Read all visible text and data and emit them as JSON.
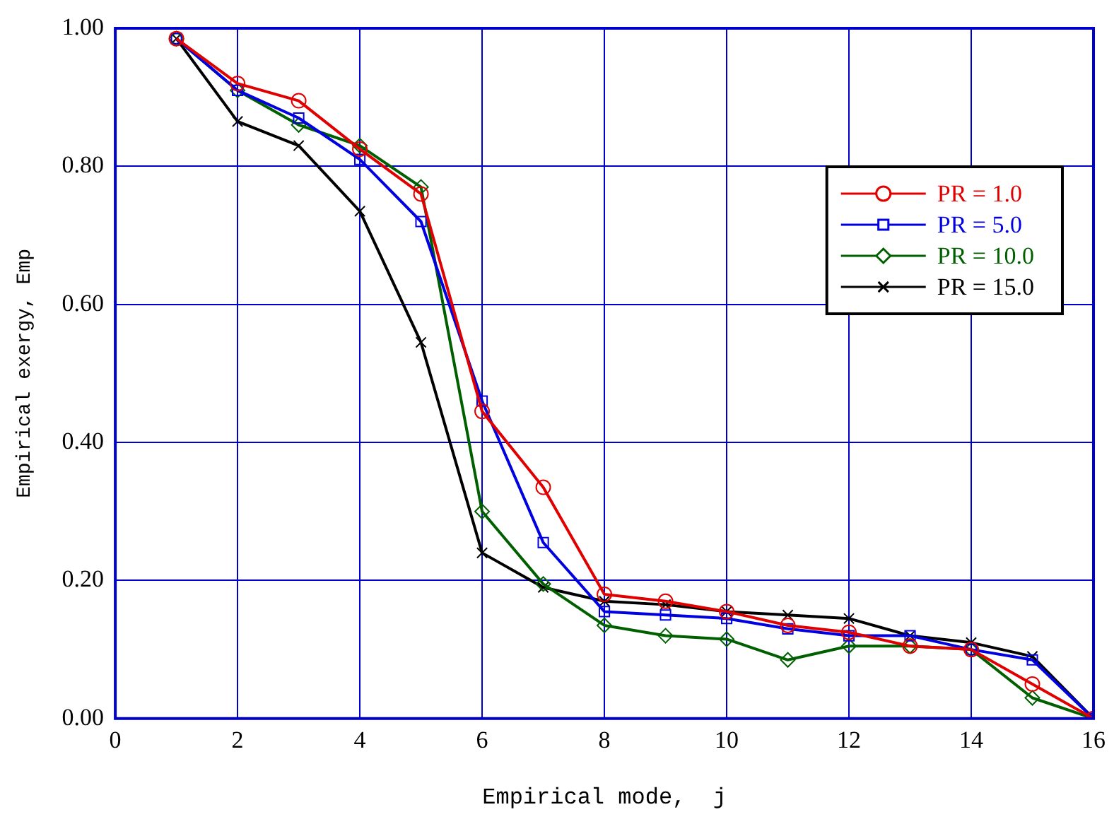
{
  "chart_data": {
    "type": "line",
    "xlabel": "Empirical mode,  j",
    "ylabel": "Empirical exergy, Emp",
    "x": [
      1,
      2,
      3,
      4,
      5,
      6,
      7,
      8,
      9,
      10,
      11,
      12,
      13,
      14,
      15,
      16
    ],
    "series": [
      {
        "name": "PR = 1.0",
        "color": "#e00000",
        "marker": "circle",
        "values": [
          0.985,
          0.92,
          0.895,
          0.825,
          0.76,
          0.445,
          0.335,
          0.18,
          0.17,
          0.155,
          0.135,
          0.125,
          0.105,
          0.1,
          0.05,
          0
        ]
      },
      {
        "name": "PR = 5.0",
        "color": "#0000e0",
        "marker": "square",
        "values": [
          0.985,
          0.91,
          0.87,
          0.81,
          0.72,
          0.46,
          0.255,
          0.155,
          0.15,
          0.145,
          0.13,
          0.12,
          0.12,
          0.1,
          0.085,
          0
        ]
      },
      {
        "name": "PR = 10.0",
        "color": "#006000",
        "marker": "diamond",
        "values": [
          0.985,
          0.91,
          0.86,
          0.83,
          0.77,
          0.3,
          0.195,
          0.135,
          0.12,
          0.115,
          0.085,
          0.105,
          0.105,
          0.1,
          0.03,
          0
        ]
      },
      {
        "name": "PR = 15.0",
        "color": "#000000",
        "marker": "cross",
        "values": [
          0.985,
          0.865,
          0.83,
          0.735,
          0.545,
          0.24,
          0.19,
          0.17,
          0.165,
          0.155,
          0.15,
          0.145,
          0.12,
          0.11,
          0.09,
          0
        ]
      }
    ],
    "xlim": [
      0,
      16
    ],
    "xticks": [
      0,
      2,
      4,
      6,
      8,
      10,
      12,
      14,
      16
    ],
    "ylim": [
      0,
      1
    ],
    "yticks": [
      {
        "value": 0,
        "label": "0.00"
      },
      {
        "value": 0.2,
        "label": "0.20"
      },
      {
        "value": 0.4,
        "label": "0.40"
      },
      {
        "value": 0.6,
        "label": "0.60"
      },
      {
        "value": 0.8,
        "label": "0.80"
      },
      {
        "value": 1,
        "label": "1.00"
      }
    ],
    "grid": true,
    "legend": "top right",
    "line_style": "solid"
  }
}
